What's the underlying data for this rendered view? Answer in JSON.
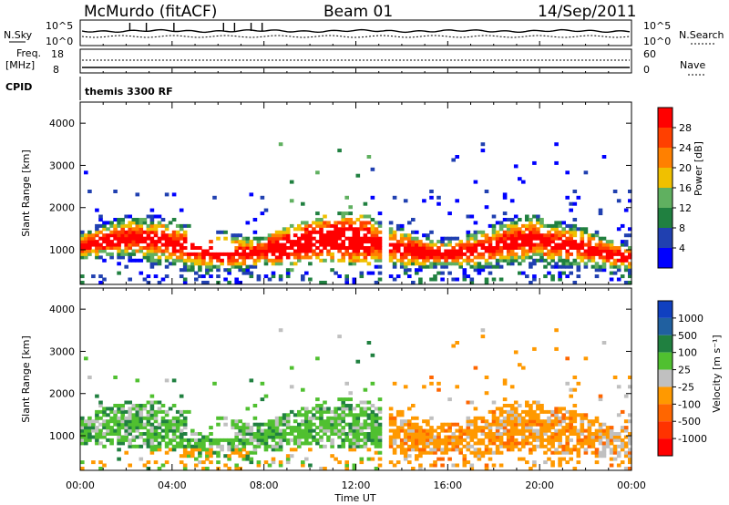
{
  "header": {
    "station": "McMurdo (fitACF)",
    "beam": "Beam 01",
    "date": "14/Sep/2011"
  },
  "panels": {
    "nsky_label": "N.Sky",
    "nsky_ticks": [
      "10^5",
      "10^0"
    ],
    "nsearch_label": "N.Search",
    "nsearch_ticks": [
      "10^5",
      "10^0"
    ],
    "freq_label": "Freq.",
    "freq_unit": "[MHz]",
    "freq_ticks": [
      "18",
      "8"
    ],
    "nave_label": "Nave",
    "nave_ticks": [
      "60",
      "0"
    ],
    "cpid_label": "CPID",
    "cpid_value": "themis 3300 RF"
  },
  "colors": {
    "power": [
      "#0000ff",
      "#2040b0",
      "#208040",
      "#60b060",
      "#f0c000",
      "#ff8000",
      "#ff4000",
      "#ff0000"
    ],
    "velocity": [
      "#1040c0",
      "#2060a0",
      "#208040",
      "#50c030",
      "#c0c0c0",
      "#ff9900",
      "#ff6600",
      "#ff3300",
      "#ff0000"
    ]
  },
  "chart_data": [
    {
      "type": "heatmap",
      "name": "power-panel",
      "ylabel": "Slant Range [km]",
      "xlabel": "Time UT",
      "xlim": [
        "00:00",
        "24:00"
      ],
      "ylim": [
        180,
        4500
      ],
      "x_tick_labels": [
        "00:00",
        "04:00",
        "08:00",
        "12:00",
        "16:00",
        "20:00",
        "00:00"
      ],
      "y_ticks": [
        1000,
        2000,
        3000,
        4000
      ],
      "colorbar_label": "Power [dB]",
      "colorbar_ticks": [
        "4",
        "8",
        "12",
        "16",
        "20",
        "24",
        "28"
      ],
      "colorbar_range": [
        0,
        30
      ]
    },
    {
      "type": "heatmap",
      "name": "velocity-panel",
      "ylabel": "Slant Range [km]",
      "xlabel": "Time UT",
      "xlim": [
        "00:00",
        "24:00"
      ],
      "ylim": [
        180,
        4500
      ],
      "x_tick_labels": [
        "00:00",
        "04:00",
        "08:00",
        "12:00",
        "16:00",
        "20:00",
        "00:00"
      ],
      "y_ticks": [
        1000,
        2000,
        3000,
        4000
      ],
      "colorbar_label": "Velocity [m s⁻¹]",
      "colorbar_ticks": [
        "1000",
        "500",
        "100",
        "25",
        "-25",
        "-100",
        "-500",
        "-1000"
      ]
    }
  ],
  "axis": {
    "xlabel": "Time UT",
    "x_ticks": [
      "00:00",
      "04:00",
      "08:00",
      "12:00",
      "16:00",
      "20:00",
      "00:00"
    ]
  }
}
